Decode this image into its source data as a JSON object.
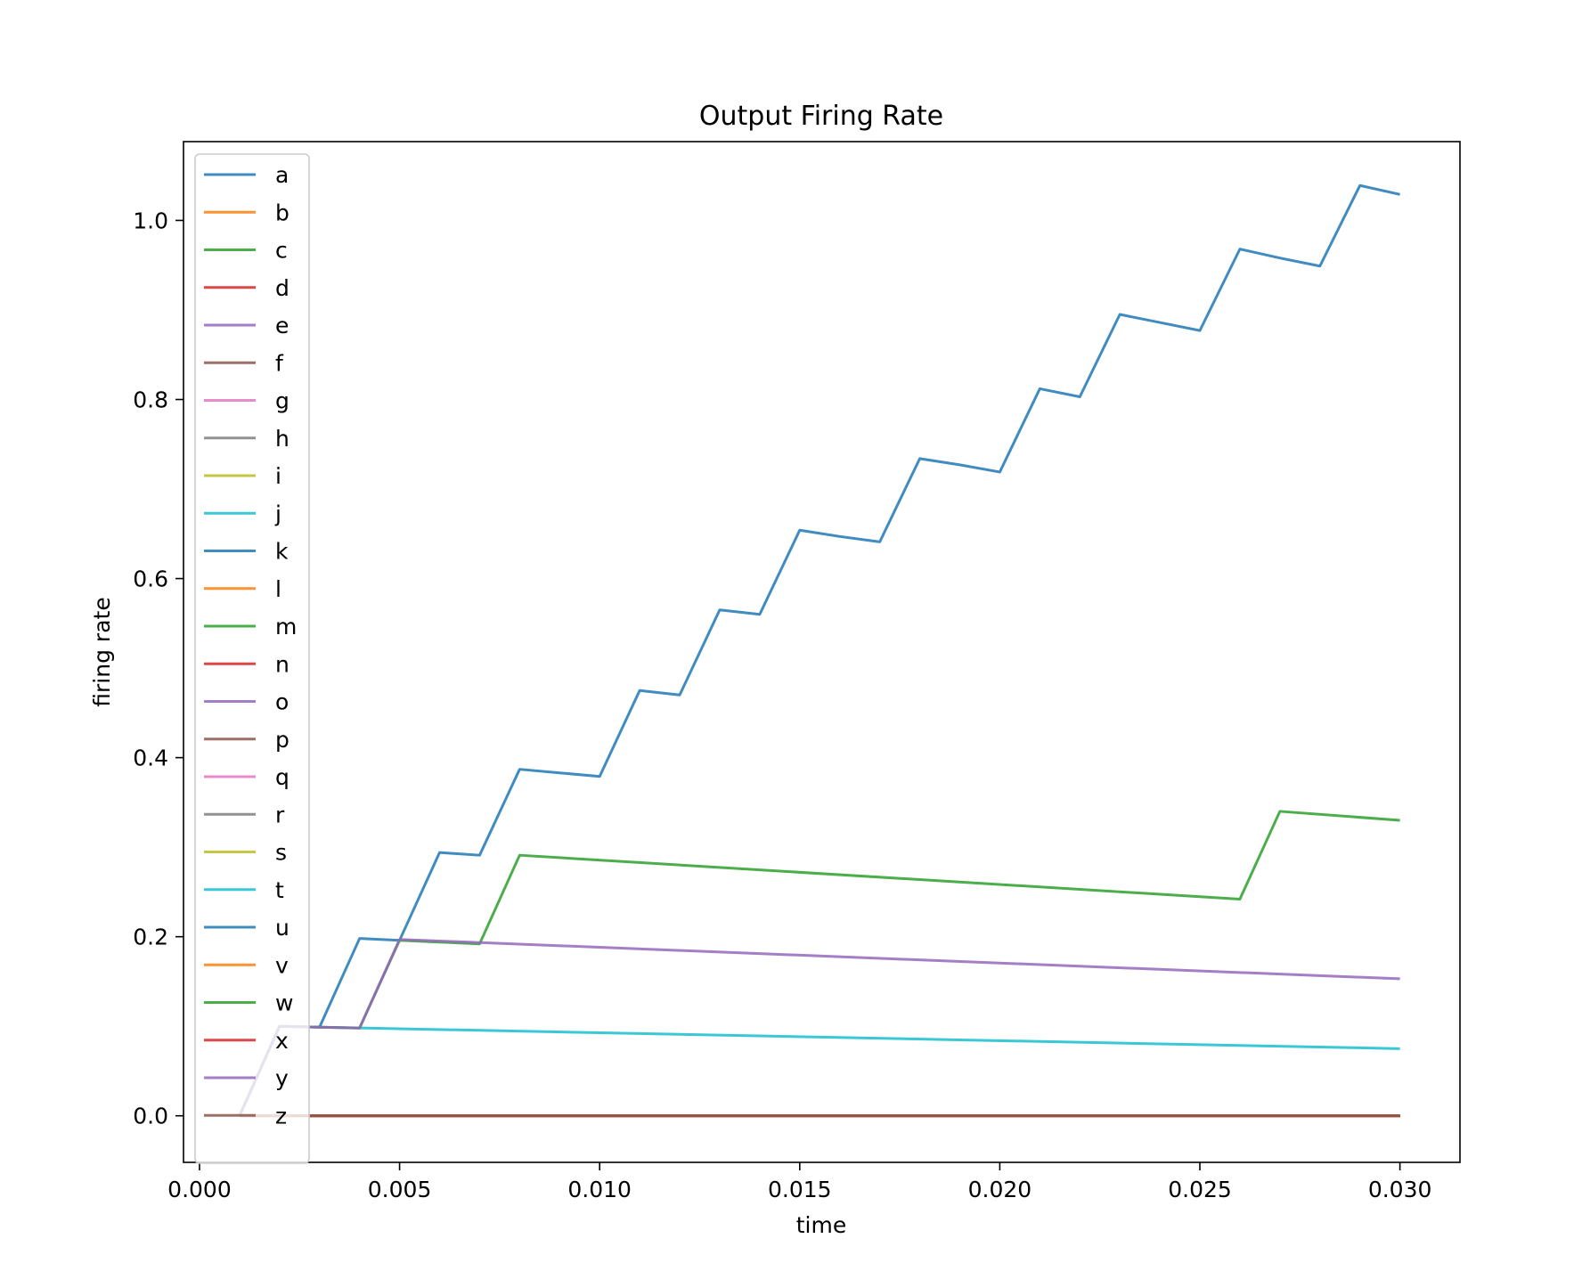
{
  "chart_data": {
    "type": "line",
    "title": "Output Firing Rate",
    "xlabel": "time",
    "ylabel": "firing rate",
    "xlim": [
      -0.0004,
      0.0315
    ],
    "ylim": [
      -0.052,
      1.088
    ],
    "xticks": [
      0.0,
      0.005,
      0.01,
      0.015,
      0.02,
      0.025,
      0.03
    ],
    "xtick_labels": [
      "0.000",
      "0.005",
      "0.010",
      "0.015",
      "0.020",
      "0.025",
      "0.030"
    ],
    "yticks": [
      0.0,
      0.2,
      0.4,
      0.6,
      0.8,
      1.0
    ],
    "ytick_labels": [
      "0.0",
      "0.2",
      "0.4",
      "0.6",
      "0.8",
      "1.0"
    ],
    "grid": false,
    "legend_position": "upper-left",
    "series": [
      {
        "name": "a",
        "color": "#1f77b4",
        "x": [
          0.001,
          0.03
        ],
        "y": [
          0.0,
          0.0
        ]
      },
      {
        "name": "b",
        "color": "#ff7f0e",
        "x": [
          0.001,
          0.03
        ],
        "y": [
          0.0,
          0.0
        ]
      },
      {
        "name": "c",
        "color": "#2ca02c",
        "x": [
          0.001,
          0.03
        ],
        "y": [
          0.0,
          0.0
        ]
      },
      {
        "name": "d",
        "color": "#d62728",
        "x": [
          0.001,
          0.03
        ],
        "y": [
          0.0,
          0.0
        ]
      },
      {
        "name": "e",
        "color": "#9467bd",
        "x": [
          0.001,
          0.03
        ],
        "y": [
          0.0,
          0.0
        ]
      },
      {
        "name": "f",
        "color": "#8c564b",
        "x": [
          0.001,
          0.03
        ],
        "y": [
          0.0,
          0.0
        ]
      },
      {
        "name": "g",
        "color": "#e377c2",
        "x": [
          0.001,
          0.03
        ],
        "y": [
          0.0,
          0.0
        ]
      },
      {
        "name": "h",
        "color": "#7f7f7f",
        "x": [
          0.001,
          0.03
        ],
        "y": [
          0.0,
          0.0
        ]
      },
      {
        "name": "i",
        "color": "#bcbd22",
        "x": [
          0.001,
          0.03
        ],
        "y": [
          0.0,
          0.0
        ]
      },
      {
        "name": "j",
        "color": "#17becf",
        "x": [
          0.001,
          0.03
        ],
        "y": [
          0.0,
          0.0
        ]
      },
      {
        "name": "k",
        "color": "#1f77b4",
        "x": [
          0.001,
          0.03
        ],
        "y": [
          0.0,
          0.0
        ]
      },
      {
        "name": "l",
        "color": "#ff7f0e",
        "x": [
          0.001,
          0.03
        ],
        "y": [
          0.0,
          0.0
        ]
      },
      {
        "name": "m",
        "color": "#2ca02c",
        "x": [
          0.001,
          0.03
        ],
        "y": [
          0.0,
          0.0
        ]
      },
      {
        "name": "n",
        "color": "#d62728",
        "x": [
          0.001,
          0.03
        ],
        "y": [
          0.0,
          0.0
        ]
      },
      {
        "name": "o",
        "color": "#9467bd",
        "x": [
          0.001,
          0.03
        ],
        "y": [
          0.0,
          0.0
        ]
      },
      {
        "name": "p",
        "color": "#8c564b",
        "x": [
          0.001,
          0.03
        ],
        "y": [
          0.0,
          0.0
        ]
      },
      {
        "name": "q",
        "color": "#e377c2",
        "x": [
          0.001,
          0.03
        ],
        "y": [
          0.0,
          0.0
        ]
      },
      {
        "name": "r",
        "color": "#7f7f7f",
        "x": [
          0.001,
          0.03
        ],
        "y": [
          0.0,
          0.0
        ]
      },
      {
        "name": "s",
        "color": "#bcbd22",
        "x": [
          0.001,
          0.03
        ],
        "y": [
          0.0,
          0.0
        ]
      },
      {
        "name": "t",
        "color": "#17becf",
        "x": [
          0.001,
          0.002,
          0.003,
          0.03
        ],
        "y": [
          0.0,
          0.1,
          0.099,
          0.075
        ]
      },
      {
        "name": "u",
        "color": "#1f77b4",
        "x": [
          0.001,
          0.002,
          0.003,
          0.004,
          0.005,
          0.006,
          0.007,
          0.008,
          0.009,
          0.01,
          0.011,
          0.012,
          0.013,
          0.014,
          0.015,
          0.016,
          0.017,
          0.018,
          0.019,
          0.02,
          0.021,
          0.022,
          0.023,
          0.024,
          0.025,
          0.026,
          0.027,
          0.028,
          0.029,
          0.03
        ],
        "y": [
          0.0,
          0.1,
          0.099,
          0.198,
          0.196,
          0.294,
          0.291,
          0.387,
          0.383,
          0.379,
          0.475,
          0.47,
          0.565,
          0.56,
          0.654,
          0.647,
          0.641,
          0.734,
          0.727,
          0.719,
          0.812,
          0.803,
          0.895,
          0.886,
          0.877,
          0.968,
          0.958,
          0.949,
          1.039,
          1.029
        ]
      },
      {
        "name": "v",
        "color": "#ff7f0e",
        "x": [
          0.001,
          0.03
        ],
        "y": [
          0.0,
          0.0
        ]
      },
      {
        "name": "w",
        "color": "#2ca02c",
        "x": [
          0.001,
          0.002,
          0.003,
          0.004,
          0.005,
          0.006,
          0.007,
          0.008,
          0.026,
          0.027,
          0.03
        ],
        "y": [
          0.0,
          0.1,
          0.099,
          0.098,
          0.196,
          0.194,
          0.192,
          0.291,
          0.242,
          0.34,
          0.33
        ]
      },
      {
        "name": "x",
        "color": "#d62728",
        "x": [
          0.001,
          0.03
        ],
        "y": [
          0.0,
          0.0
        ]
      },
      {
        "name": "y",
        "color": "#9467bd",
        "x": [
          0.001,
          0.002,
          0.003,
          0.004,
          0.005,
          0.03
        ],
        "y": [
          0.0,
          0.1,
          0.099,
          0.098,
          0.197,
          0.153
        ]
      },
      {
        "name": "z",
        "color": "#8c564b",
        "x": [
          0.001,
          0.03
        ],
        "y": [
          0.0,
          0.0
        ]
      }
    ]
  }
}
